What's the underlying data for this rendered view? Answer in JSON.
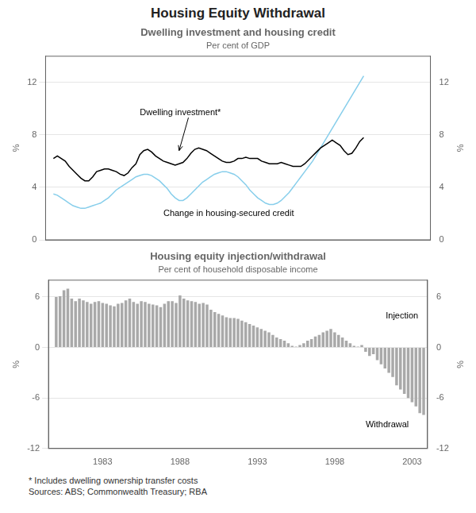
{
  "title": "Housing Equity Withdrawal",
  "footnote": "*    Includes dwelling ownership transfer costs\nSources: ABS; Commonwealth Treasury; RBA",
  "chart_data": [
    {
      "type": "line",
      "title": "Dwelling investment and housing credit",
      "subtitle": "Per cent of GDP",
      "ylabel": "%",
      "y2label": "%",
      "x": [
        1980.0,
        1980.25,
        1980.5,
        1980.75,
        1981.0,
        1981.25,
        1981.5,
        1981.75,
        1982.0,
        1982.25,
        1982.5,
        1982.75,
        1983.0,
        1983.25,
        1983.5,
        1983.75,
        1984.0,
        1984.25,
        1984.5,
        1984.75,
        1985.0,
        1985.25,
        1985.5,
        1985.75,
        1986.0,
        1986.25,
        1986.5,
        1986.75,
        1987.0,
        1987.25,
        1987.5,
        1987.75,
        1988.0,
        1988.25,
        1988.5,
        1988.75,
        1989.0,
        1989.25,
        1989.5,
        1989.75,
        1990.0,
        1990.25,
        1990.5,
        1990.75,
        1991.0,
        1991.25,
        1991.5,
        1991.75,
        1992.0,
        1992.25,
        1992.5,
        1992.75,
        1993.0,
        1993.25,
        1993.5,
        1993.75,
        1994.0,
        1994.25,
        1994.5,
        1994.75,
        1995.0,
        1995.25,
        1995.5,
        1995.75,
        1996.0,
        1996.25,
        1996.5,
        1996.75,
        1997.0,
        1997.25,
        1997.5,
        1997.75,
        1998.0,
        1998.25,
        1998.5,
        1998.75,
        1999.0,
        1999.25,
        1999.5,
        1999.75
      ],
      "series": [
        {
          "color": "#000000",
          "values": [
            6.2,
            6.4,
            6.2,
            6.0,
            5.6,
            5.3,
            5.0,
            4.7,
            4.5,
            4.5,
            4.8,
            5.2,
            5.3,
            5.4,
            5.4,
            5.3,
            5.2,
            5.0,
            4.9,
            5.1,
            5.5,
            5.8,
            6.5,
            6.8,
            6.9,
            6.7,
            6.4,
            6.2,
            6.0,
            5.9,
            5.8,
            5.7,
            5.8,
            5.9,
            6.2,
            6.6,
            6.9,
            7.0,
            6.9,
            6.8,
            6.6,
            6.4,
            6.2,
            6.0,
            5.9,
            5.9,
            6.0,
            6.2,
            6.2,
            6.3,
            6.2,
            6.2,
            6.2,
            6.0,
            5.9,
            5.8,
            5.8,
            5.8,
            5.9,
            5.8,
            5.7,
            5.6,
            5.6,
            5.6,
            5.8,
            6.1,
            6.4,
            6.7,
            7.0,
            7.2,
            7.4,
            7.6,
            7.4,
            7.2,
            6.8,
            6.5,
            6.6,
            7.0,
            7.5,
            7.8
          ]
        },
        {
          "color": "#87ceeb",
          "values": [
            3.5,
            3.4,
            3.2,
            3.0,
            2.8,
            2.6,
            2.5,
            2.4,
            2.4,
            2.5,
            2.6,
            2.7,
            2.8,
            3.0,
            3.2,
            3.5,
            3.8,
            4.0,
            4.2,
            4.4,
            4.6,
            4.8,
            4.9,
            5.0,
            5.0,
            4.9,
            4.7,
            4.5,
            4.2,
            3.9,
            3.5,
            3.2,
            3.0,
            3.0,
            3.2,
            3.5,
            3.8,
            4.1,
            4.4,
            4.6,
            4.8,
            5.0,
            5.1,
            5.2,
            5.2,
            5.1,
            5.0,
            4.8,
            4.5,
            4.2,
            3.8,
            3.5,
            3.2,
            3.0,
            2.8,
            2.7,
            2.7,
            2.8,
            3.0,
            3.3,
            3.6,
            4.0,
            4.4,
            4.8,
            5.2,
            5.6,
            6.0,
            6.5,
            7.0,
            7.5,
            8.0,
            8.5,
            9.0,
            9.5,
            10.0,
            10.5,
            11.0,
            11.5,
            12.0,
            12.5
          ]
        }
      ],
      "xlim": [
        1979.5,
        2004.0
      ],
      "ylim": [
        0,
        14
      ],
      "yticks": [
        0,
        4,
        8,
        12
      ],
      "y2lim": [
        0,
        14
      ],
      "y2ticks": [
        0,
        4,
        8,
        12
      ],
      "tick_labels": "y",
      "grid": true,
      "annotations": [
        {
          "text": "Dwelling investment*",
          "x": 1985.5,
          "y": 9.5,
          "arrow": [
            1988.0,
            6.8
          ]
        },
        {
          "text": "Change in housing-secured credit",
          "x": 1987.0,
          "y": 1.8
        }
      ]
    },
    {
      "type": "bar",
      "title": "Housing equity injection/withdrawal",
      "subtitle": "Per cent of household disposable income",
      "ylabel": "%",
      "y2label": "%",
      "x": [
        1980.0,
        1980.25,
        1980.5,
        1980.75,
        1981.0,
        1981.25,
        1981.5,
        1981.75,
        1982.0,
        1982.25,
        1982.5,
        1982.75,
        1983.0,
        1983.25,
        1983.5,
        1983.75,
        1984.0,
        1984.25,
        1984.5,
        1984.75,
        1985.0,
        1985.25,
        1985.5,
        1985.75,
        1986.0,
        1986.25,
        1986.5,
        1986.75,
        1987.0,
        1987.25,
        1987.5,
        1987.75,
        1988.0,
        1988.25,
        1988.5,
        1988.75,
        1989.0,
        1989.25,
        1989.5,
        1989.75,
        1990.0,
        1990.25,
        1990.5,
        1990.75,
        1991.0,
        1991.25,
        1991.5,
        1991.75,
        1992.0,
        1992.25,
        1992.5,
        1992.75,
        1993.0,
        1993.25,
        1993.5,
        1993.75,
        1994.0,
        1994.25,
        1994.5,
        1994.75,
        1995.0,
        1995.25,
        1995.5,
        1995.75,
        1996.0,
        1996.25,
        1996.5,
        1996.75,
        1997.0,
        1997.25,
        1997.5,
        1997.75,
        1998.0,
        1998.25,
        1998.5,
        1998.75,
        1999.0,
        1999.25,
        1999.5,
        1999.75,
        2000.0,
        2000.25,
        2000.5,
        2000.75,
        2001.0,
        2001.25,
        2001.5,
        2001.75,
        2002.0,
        2002.25,
        2002.5,
        2002.75,
        2003.0,
        2003.25,
        2003.5,
        2003.75
      ],
      "values": [
        6.0,
        6.1,
        6.8,
        7.0,
        5.8,
        5.5,
        5.8,
        5.6,
        5.4,
        5.2,
        5.4,
        5.5,
        5.3,
        5.2,
        5.0,
        4.9,
        5.2,
        5.3,
        5.6,
        5.8,
        5.4,
        5.2,
        5.5,
        5.4,
        5.2,
        5.1,
        5.0,
        4.8,
        5.2,
        5.5,
        5.5,
        5.3,
        6.2,
        5.8,
        5.6,
        5.5,
        5.4,
        5.2,
        5.3,
        5.1,
        4.5,
        4.2,
        4.0,
        3.8,
        3.6,
        3.5,
        3.5,
        3.4,
        3.2,
        3.0,
        2.8,
        2.6,
        2.4,
        2.2,
        2.0,
        1.8,
        1.5,
        1.2,
        1.0,
        0.8,
        0.5,
        0.2,
        0.1,
        0.3,
        0.5,
        0.8,
        1.0,
        1.3,
        1.5,
        1.8,
        2.0,
        2.2,
        1.8,
        1.5,
        1.2,
        0.8,
        0.5,
        0.2,
        0.1,
        0.3,
        -0.5,
        -1.0,
        -0.8,
        -1.5,
        -2.0,
        -2.5,
        -3.0,
        -3.5,
        -4.5,
        -5.0,
        -5.5,
        -6.0,
        -6.5,
        -7.0,
        -7.8,
        -8.0
      ],
      "color": "#a9a9a9",
      "xlim": [
        1979.5,
        2004.0
      ],
      "xticks": [
        1983,
        1988,
        1993,
        1998,
        2003
      ],
      "ylim": [
        -12,
        8
      ],
      "yticks": [
        -12,
        -6,
        0,
        6
      ],
      "y2lim": [
        -12,
        8
      ],
      "y2ticks": [
        -12,
        -6,
        0,
        6
      ],
      "grid": true,
      "annotations": [
        {
          "text": "Injection",
          "x": 2001.3,
          "y": 3.5
        },
        {
          "text": "Withdrawal",
          "x": 2000.0,
          "y": -9.5
        }
      ]
    }
  ]
}
